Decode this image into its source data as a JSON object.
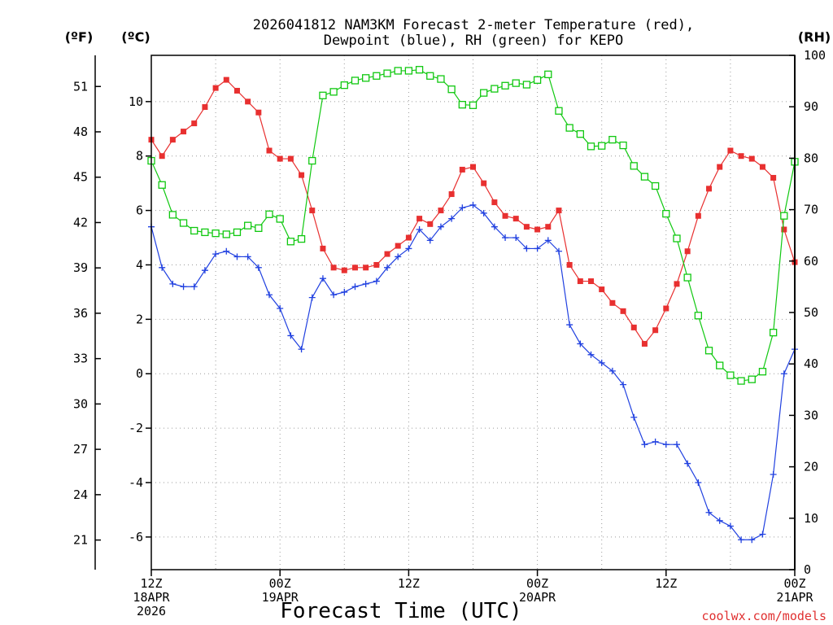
{
  "chart_data": {
    "type": "line",
    "title_lines": [
      "2026041812 NAM3KM Forecast 2-meter Temperature (red),",
      "Dewpoint (blue), RH (green) for KEPO"
    ],
    "left_axis_f_label": "(ºF)",
    "left_axis_c_label": "(ºC)",
    "right_axis_label": "(RH)",
    "xlabel": "Forecast Time (UTC)",
    "credit": "coolwx.com/models",
    "x_ticks": [
      {
        "t": 0,
        "lines": [
          "12Z",
          "18APR",
          "2026"
        ]
      },
      {
        "t": 12,
        "lines": [
          "00Z",
          "19APR"
        ]
      },
      {
        "t": 24,
        "lines": [
          "12Z"
        ]
      },
      {
        "t": 36,
        "lines": [
          "00Z",
          "20APR"
        ]
      },
      {
        "t": 48,
        "lines": [
          "12Z"
        ]
      },
      {
        "t": 60,
        "lines": [
          "00Z",
          "21APR"
        ]
      }
    ],
    "xlim": [
      0,
      60
    ],
    "ylim_c": [
      -7.2,
      11.7
    ],
    "ylim_rh": [
      0,
      100
    ],
    "y_ticks_c": [
      -6,
      -4,
      -2,
      0,
      2,
      4,
      6,
      8,
      10
    ],
    "y_ticks_f": [
      21,
      24,
      27,
      30,
      33,
      36,
      39,
      42,
      45,
      48,
      51
    ],
    "y_ticks_rh": [
      0,
      10,
      20,
      30,
      40,
      50,
      60,
      70,
      80,
      90,
      100
    ],
    "colors": {
      "temperature": "#e83030",
      "dewpoint": "#2040e0",
      "rh": "#10c810",
      "credit": "#e03030"
    },
    "series": [
      {
        "name": "Temperature",
        "unit": "C",
        "values": [
          8.6,
          8.0,
          8.6,
          8.9,
          9.2,
          9.8,
          10.5,
          10.8,
          10.4,
          10.0,
          9.6,
          8.2,
          7.9,
          7.9,
          7.3,
          6.0,
          4.6,
          3.9,
          3.8,
          3.9,
          3.9,
          4.0,
          4.4,
          4.7,
          5.0,
          5.7,
          5.5,
          6.0,
          6.6,
          7.5,
          7.6,
          7.0,
          6.3,
          5.8,
          5.7,
          5.4,
          5.3,
          5.4,
          6.0,
          4.0,
          3.4,
          3.4,
          3.1,
          2.6,
          2.3,
          1.7,
          1.1,
          1.6,
          2.4,
          3.3,
          4.5,
          5.8,
          6.8,
          7.6,
          8.2,
          8.0,
          7.9,
          7.6,
          7.2,
          5.3,
          4.1
        ]
      },
      {
        "name": "Dewpoint",
        "unit": "C",
        "values": [
          5.4,
          3.9,
          3.3,
          3.2,
          3.2,
          3.8,
          4.4,
          4.5,
          4.3,
          4.3,
          3.9,
          2.9,
          2.4,
          1.4,
          0.9,
          2.8,
          3.5,
          2.9,
          3.0,
          3.2,
          3.3,
          3.4,
          3.9,
          4.3,
          4.6,
          5.3,
          4.9,
          5.4,
          5.7,
          6.1,
          6.2,
          5.9,
          5.4,
          5.0,
          5.0,
          4.6,
          4.6,
          4.9,
          4.5,
          1.8,
          1.1,
          0.7,
          0.4,
          0.1,
          -0.4,
          -1.6,
          -2.6,
          -2.5,
          -2.6,
          -2.6,
          -3.3,
          -4.0,
          -5.1,
          -5.4,
          -5.6,
          -6.1,
          -6.1,
          -5.9,
          -3.7,
          0.0,
          0.9
        ]
      },
      {
        "name": "RH",
        "unit": "%",
        "values": [
          79.5,
          74.8,
          69.0,
          67.4,
          65.9,
          65.6,
          65.4,
          65.2,
          65.6,
          66.9,
          66.4,
          69.1,
          68.2,
          63.8,
          64.3,
          79.5,
          92.2,
          92.9,
          94.2,
          95.1,
          95.6,
          96.0,
          96.5,
          97.0,
          97.0,
          97.2,
          96.0,
          95.4,
          93.4,
          90.4,
          90.3,
          92.7,
          93.5,
          94.1,
          94.6,
          94.3,
          95.2,
          96.3,
          89.2,
          85.9,
          84.7,
          82.3,
          82.4,
          83.6,
          82.5,
          78.5,
          76.4,
          74.6,
          69.2,
          64.4,
          56.8,
          49.4,
          42.6,
          39.7,
          37.8,
          36.7,
          37.0,
          38.5,
          46.1,
          68.8,
          79.3
        ]
      }
    ]
  }
}
